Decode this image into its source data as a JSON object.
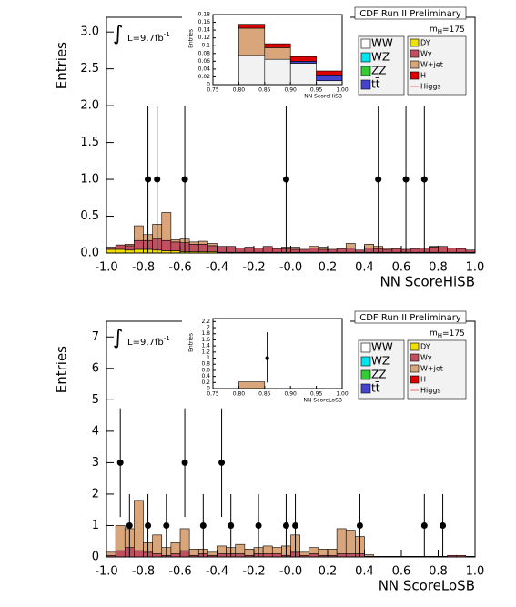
{
  "chart_data": [
    {
      "type": "histogram",
      "y_label": "Entries",
      "x_label": "NN ScoreHiSB",
      "header": "CDF Run II Preliminary",
      "mass_label": {
        "main": "m",
        "sub": "H",
        "rest": "=175"
      },
      "lumi": {
        "integral": "∫",
        "main": "L=9.7fb",
        "sup": "-1"
      },
      "xlim": [
        -1,
        1
      ],
      "ylim": [
        0,
        3.2
      ],
      "xticks": [
        {
          "value": -1,
          "label": "-1.0"
        },
        -0.8,
        -0.6,
        -0.4,
        -0.2,
        {
          "value": 0,
          "label": "-0.0"
        },
        0.2,
        0.4,
        0.6,
        0.8,
        {
          "value": 1,
          "label": "1.0"
        }
      ],
      "yticks": [
        {
          "value": 0,
          "label": "0.0"
        },
        0.5,
        {
          "value": 1,
          "label": "1.0"
        },
        1.5,
        {
          "value": 2,
          "label": "2.0"
        },
        2.5,
        {
          "value": 3,
          "label": "3.0"
        }
      ],
      "bins": [
        -1,
        -0.95,
        -0.9,
        -0.85,
        -0.8,
        -0.75,
        -0.7,
        -0.65,
        -0.6,
        -0.55,
        -0.5,
        -0.45,
        -0.4,
        -0.35,
        -0.3,
        -0.25,
        -0.2,
        -0.15,
        -0.1,
        -0.05,
        0,
        0.05,
        0.1,
        0.15,
        0.2,
        0.25,
        0.3,
        0.35,
        0.4,
        0.45,
        0.5,
        0.55,
        0.6,
        0.65,
        0.7,
        0.75,
        0.8,
        0.85,
        0.9,
        0.95,
        1
      ],
      "series": [
        {
          "name": "DY",
          "color": "#f0e000",
          "values": [
            0.05,
            0.05,
            0.04,
            0.05,
            0.05,
            0.04,
            0.03,
            0.03,
            0.02,
            0.02,
            0.02,
            0.02,
            0.01,
            0.01,
            0.01,
            0.01,
            0.01,
            0.01,
            0.01,
            0.01,
            0.01,
            0.01,
            0.01,
            0.01,
            0.01,
            0.01,
            0.01,
            0.01,
            0.01,
            0.01,
            0.01,
            0.01,
            0.01,
            0.01,
            0.01,
            0.01,
            0.01,
            0.01,
            0.01,
            0.01
          ]
        },
        {
          "name": "Wγ",
          "color": "#c05060",
          "values": [
            0.03,
            0.06,
            0.06,
            0.12,
            0.12,
            0.15,
            0.14,
            0.12,
            0.12,
            0.1,
            0.1,
            0.08,
            0.08,
            0.08,
            0.06,
            0.07,
            0.06,
            0.08,
            0.05,
            0.05,
            0.04,
            0.04,
            0.06,
            0.04,
            0.04,
            0.05,
            0.06,
            0.03,
            0.06,
            0.05,
            0.04,
            0.05,
            0.04,
            0.05,
            0.06,
            0.07,
            0.08,
            0.06,
            0.05,
            0.03
          ]
        },
        {
          "name": "W+jet",
          "color": "#d9a57a",
          "values": [
            0,
            0,
            0.02,
            0.2,
            0.08,
            0.2,
            0.38,
            0.03,
            0.05,
            0.03,
            0.04,
            0.03,
            0,
            0,
            0,
            0,
            0,
            0,
            0,
            0.02,
            0.03,
            0,
            0.02,
            0.03,
            0,
            0,
            0.06,
            0,
            0.05,
            0.03,
            0.02,
            0,
            0,
            0,
            0,
            0.01,
            0,
            0,
            0,
            0
          ]
        }
      ],
      "data": {
        "x": [
          -0.775,
          -0.725,
          -0.575,
          -0.025,
          0.475,
          0.625,
          0.725
        ],
        "values": [
          1,
          1,
          1,
          1,
          1,
          1,
          1
        ],
        "err_low": [
          1,
          1,
          1,
          1,
          1,
          1,
          1
        ],
        "err_high": [
          1,
          1,
          1,
          1,
          1,
          1,
          1
        ]
      },
      "legend": [
        {
          "name": "WW",
          "color": "#ffffff"
        },
        {
          "name": "WZ",
          "color": "#00e5ee"
        },
        {
          "name": "ZZ",
          "color": "#33cc33"
        },
        {
          "name": "tt̄",
          "color": "#4444cc"
        },
        {
          "name": "DY",
          "color": "#f0e000"
        },
        {
          "name": "Wγ",
          "color": "#c05060"
        },
        {
          "name": "W+jet",
          "color": "#d9a57a"
        },
        {
          "name": "H",
          "color": "#dd0000"
        },
        {
          "name": "Higgs",
          "color": "#ff6666",
          "line": true
        }
      ],
      "inset": {
        "x_label": "NN ScoreHiSB",
        "y_label": "Entries",
        "xlim": [
          0.75,
          1
        ],
        "ylim": [
          0,
          0.18
        ],
        "xticks": [
          0.75,
          {
            "value": 0.8,
            "label": "0.80"
          },
          0.85,
          {
            "value": 0.9,
            "label": "0.90"
          },
          0.95,
          {
            "value": 1,
            "label": "1.00"
          }
        ],
        "yticks": [
          0,
          0.02,
          0.04,
          0.06,
          0.08,
          0.1,
          0.12,
          0.14,
          0.16,
          0.18
        ],
        "bins": [
          0.75,
          0.8,
          0.85,
          0.9,
          0.95,
          1
        ],
        "series": [
          {
            "name": "WW",
            "color": "#f2f2f2",
            "values": [
              0,
              0.075,
              0.065,
              0.055,
              0.01
            ]
          },
          {
            "name": "tt̄",
            "color": "#4444cc",
            "values": [
              0,
              0,
              0,
              0.005,
              0.015
            ]
          },
          {
            "name": "W+jet",
            "color": "#d9a57a",
            "values": [
              0,
              0.07,
              0.03,
              0,
              0
            ]
          },
          {
            "name": "H",
            "color": "#dd0000",
            "values": [
              0,
              0.01,
              0.01,
              0.012,
              0.01
            ]
          }
        ],
        "data": {
          "x": [],
          "values": [],
          "err_low": [],
          "err_high": []
        }
      }
    },
    {
      "type": "histogram",
      "y_label": "Entries",
      "x_label": "NN ScoreLoSB",
      "header": "CDF Run II Preliminary",
      "mass_label": {
        "main": "m",
        "sub": "H",
        "rest": "=175"
      },
      "lumi": {
        "integral": "∫",
        "main": "L=9.7fb",
        "sup": "-1"
      },
      "xlim": [
        -1,
        1
      ],
      "ylim": [
        0,
        7.5
      ],
      "xticks": [
        {
          "value": -1,
          "label": "-1.0"
        },
        -0.8,
        -0.6,
        -0.4,
        -0.2,
        {
          "value": 0,
          "label": "-0.0"
        },
        0.2,
        0.4,
        0.6,
        0.8,
        {
          "value": 1,
          "label": "1.0"
        }
      ],
      "yticks": [
        0,
        1,
        2,
        3,
        4,
        5,
        6,
        7
      ],
      "bins": [
        -1,
        -0.95,
        -0.9,
        -0.85,
        -0.8,
        -0.75,
        -0.7,
        -0.65,
        -0.6,
        -0.55,
        -0.5,
        -0.45,
        -0.4,
        -0.35,
        -0.3,
        -0.25,
        -0.2,
        -0.15,
        -0.1,
        -0.05,
        0,
        0.05,
        0.1,
        0.15,
        0.2,
        0.25,
        0.3,
        0.35,
        0.4,
        0.45,
        0.5,
        0.55,
        0.6,
        0.65,
        0.7,
        0.75,
        0.8,
        0.85,
        0.9,
        0.95,
        1
      ],
      "series": [
        {
          "name": "Wγ",
          "color": "#c05060",
          "values": [
            0.05,
            0.2,
            0.3,
            0.2,
            0.15,
            0.1,
            0.05,
            0.1,
            0.2,
            0.05,
            0.1,
            0.05,
            0.1,
            0.1,
            0.1,
            0.05,
            0.1,
            0.1,
            0.1,
            0.05,
            0.15,
            0.05,
            0.1,
            0.05,
            0.05,
            0.1,
            0.1,
            0.1,
            0.02,
            0.02,
            0.02,
            0.02,
            0.02,
            0.02,
            0.02,
            0.02,
            0.02,
            0.05,
            0.05,
            0.02
          ]
        },
        {
          "name": "W+jet",
          "color": "#d9a57a",
          "values": [
            0.1,
            0.8,
            0.6,
            1.6,
            0.3,
            0.6,
            0.25,
            0.35,
            0.7,
            0.2,
            0.15,
            0.1,
            0.25,
            0.2,
            0.3,
            0.2,
            0.2,
            0.25,
            0.2,
            0.3,
            0.55,
            0.1,
            0.2,
            0.2,
            0.2,
            0.8,
            0.75,
            0.55,
            0.05,
            0,
            0,
            0,
            0,
            0,
            0,
            0,
            0,
            0,
            0,
            0
          ]
        }
      ],
      "data": {
        "x": [
          -0.925,
          -0.875,
          -0.775,
          -0.675,
          -0.575,
          -0.475,
          -0.375,
          -0.325,
          -0.175,
          -0.025,
          0.025,
          0.375,
          0.725,
          0.825
        ],
        "values": [
          3,
          1,
          1,
          1,
          3,
          1,
          3,
          1,
          1,
          1,
          1,
          1,
          1,
          1
        ],
        "err_low": [
          1.73,
          1,
          1,
          1,
          1.73,
          1,
          1.73,
          1,
          1,
          1,
          1,
          1,
          1,
          1
        ],
        "err_high": [
          1.73,
          1,
          1,
          1,
          1.73,
          1,
          1.73,
          1,
          1,
          1,
          1,
          1,
          1,
          1
        ]
      },
      "legend": [
        {
          "name": "WW",
          "color": "#ffffff"
        },
        {
          "name": "WZ",
          "color": "#00e5ee"
        },
        {
          "name": "ZZ",
          "color": "#33cc33"
        },
        {
          "name": "tt̄",
          "color": "#4444cc"
        },
        {
          "name": "DY",
          "color": "#f0e000"
        },
        {
          "name": "Wγ",
          "color": "#c05060"
        },
        {
          "name": "W+jet",
          "color": "#d9a57a"
        },
        {
          "name": "H",
          "color": "#dd0000"
        },
        {
          "name": "Higgs",
          "color": "#ff6666",
          "line": true
        }
      ],
      "inset": {
        "x_label": "NN ScoreLoSB",
        "y_label": "Entries",
        "xlim": [
          0.75,
          1
        ],
        "ylim": [
          0,
          2.3
        ],
        "xticks": [
          0.75,
          {
            "value": 0.8,
            "label": "0.80"
          },
          0.85,
          {
            "value": 0.9,
            "label": "0.90"
          },
          0.95,
          {
            "value": 1,
            "label": "1.00"
          }
        ],
        "yticks": [
          0,
          0.2,
          0.4,
          0.6,
          0.8,
          1,
          1.2,
          1.4,
          1.6,
          1.8,
          2,
          2.2
        ],
        "bins": [
          0.75,
          0.8,
          0.85,
          0.9,
          0.95,
          1
        ],
        "series": [
          {
            "name": "W+jet",
            "color": "#d9a57a",
            "values": [
              0,
              0.22,
              0,
              0,
              0
            ]
          }
        ],
        "data": {
          "x": [
            0.855
          ],
          "values": [
            1
          ],
          "err_low": [
            0.8
          ],
          "err_high": [
            0.85
          ]
        }
      }
    }
  ]
}
